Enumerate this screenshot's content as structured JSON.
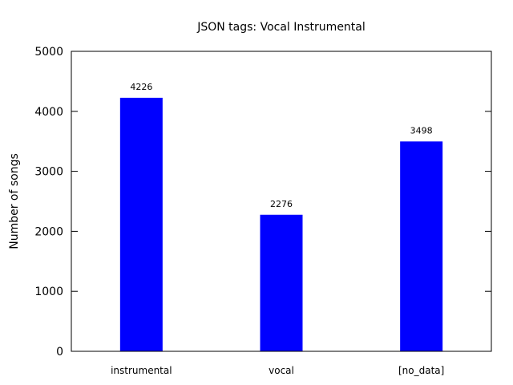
{
  "chart_data": {
    "type": "bar",
    "title": "JSON tags: Vocal Instrumental",
    "xlabel": "",
    "ylabel": "Number of songs",
    "categories": [
      "instrumental",
      "vocal",
      "[no_data]"
    ],
    "values": [
      4226,
      2276,
      3498
    ],
    "data_labels": [
      "4226",
      "2276",
      "3498"
    ],
    "ylim": [
      0,
      5000
    ],
    "yticks": [
      0,
      1000,
      2000,
      3000,
      4000,
      5000
    ],
    "ytick_labels": [
      "0",
      "1000",
      "2000",
      "3000",
      "4000",
      "5000"
    ],
    "bar_color": "#0000ff",
    "grid": false,
    "legend": "none"
  }
}
